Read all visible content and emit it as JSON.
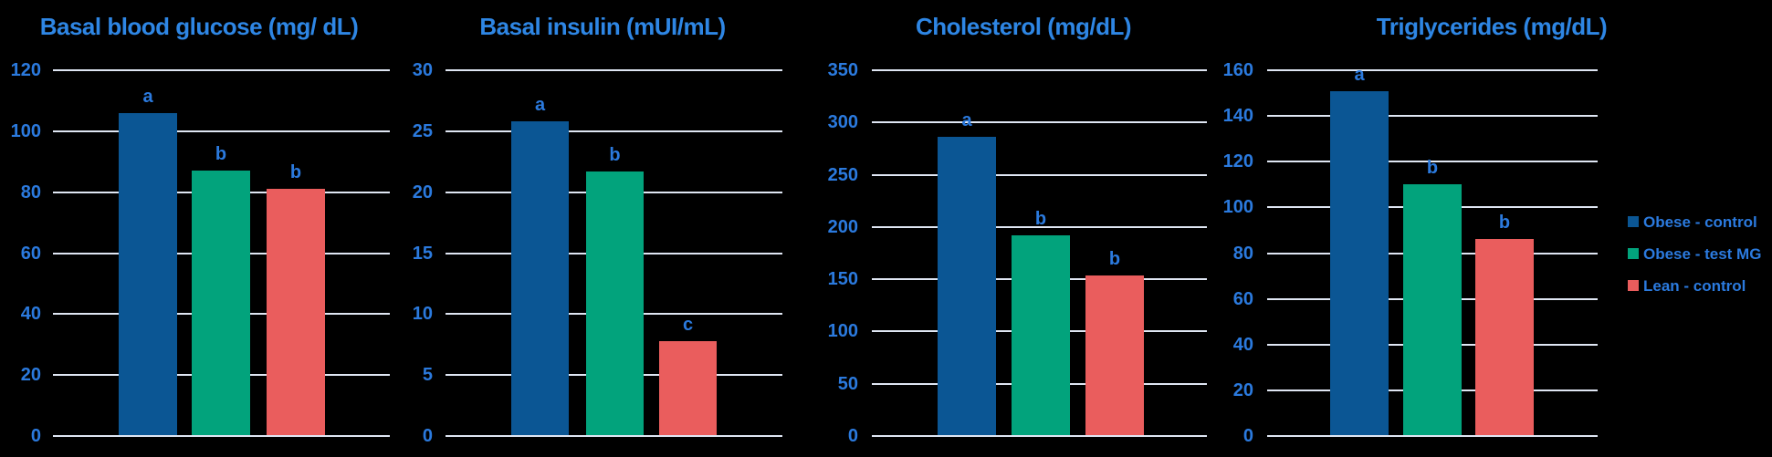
{
  "figure": {
    "background": "#000000",
    "description": "Four bar charts comparing metabolic parameters across three rat groups"
  },
  "colors": {
    "background": "#000000",
    "title_text": "#2e86e4",
    "axis_text": "#2b7ade",
    "gridline": "#dfe6f3",
    "bar_obese_control": "#0b5694",
    "bar_obese_test_mg": "#02a37c",
    "bar_lean_control": "#ea5d5d"
  },
  "legend": {
    "position": "right",
    "items": [
      {
        "label": "Obese - control",
        "color": "#0b5694"
      },
      {
        "label": "Obese - test MG",
        "color": "#02a37c"
      },
      {
        "label": "Lean - control",
        "color": "#ea5d5d"
      }
    ]
  },
  "chart_data": [
    {
      "type": "bar",
      "title": "Basal blood glucose (mg/ dL)",
      "categories": [
        "Obese - control",
        "Obese - test MG",
        "Lean - control"
      ],
      "values": [
        106,
        87,
        81
      ],
      "bar_labels": [
        "a",
        "b",
        "b"
      ],
      "xlabel": "",
      "ylabel": "",
      "ylim": [
        0,
        120
      ],
      "ytick_step": 20,
      "yticks": [
        0,
        20,
        40,
        60,
        80,
        100,
        120
      ],
      "grid": true,
      "legend_position": "none"
    },
    {
      "type": "bar",
      "title": "Basal insulin (mUI/mL)",
      "categories": [
        "Obese - control",
        "Obese - test MG",
        "Lean - control"
      ],
      "values": [
        25.8,
        21.7,
        7.8
      ],
      "bar_labels": [
        "a",
        "b",
        "c"
      ],
      "xlabel": "",
      "ylabel": "",
      "ylim": [
        0,
        30
      ],
      "ytick_step": 5,
      "yticks": [
        0,
        5,
        10,
        15,
        20,
        25,
        30
      ],
      "grid": true,
      "legend_position": "none"
    },
    {
      "type": "bar",
      "title": "Cholesterol (mg/dL)",
      "categories": [
        "Obese - control",
        "Obese - test MG",
        "Lean - control"
      ],
      "values": [
        286,
        192,
        154
      ],
      "bar_labels": [
        "a",
        "b",
        "b"
      ],
      "xlabel": "",
      "ylabel": "",
      "ylim": [
        0,
        350
      ],
      "ytick_step": 50,
      "yticks": [
        0,
        50,
        100,
        150,
        200,
        250,
        300,
        350
      ],
      "grid": true,
      "legend_position": "none"
    },
    {
      "type": "bar",
      "title": "Triglycerides (mg/dL)",
      "categories": [
        "Obese - control",
        "Obese - test MG",
        "Lean - control"
      ],
      "values": [
        151,
        110,
        86
      ],
      "bar_labels": [
        "a",
        "b",
        "b"
      ],
      "xlabel": "",
      "ylabel": "",
      "ylim": [
        0,
        160
      ],
      "ytick_step": 20,
      "yticks": [
        0,
        20,
        40,
        60,
        80,
        100,
        120,
        140,
        160
      ],
      "grid": true,
      "legend_position": "right-of-figure"
    }
  ]
}
